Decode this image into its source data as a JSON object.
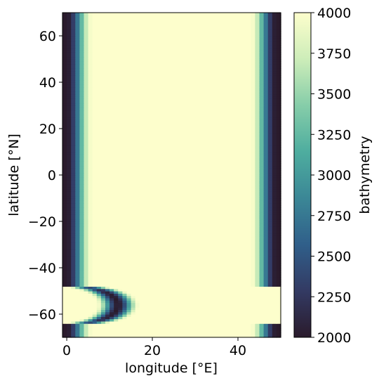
{
  "chart_data": {
    "type": "heatmap",
    "title": "",
    "xlabel": "longitude [°E]",
    "ylabel": "latitude [°N]",
    "xlim": [
      -1,
      50
    ],
    "ylim": [
      -70,
      70
    ],
    "xticks": [
      0,
      20,
      40
    ],
    "yticks": [
      -60,
      -40,
      -20,
      0,
      20,
      40,
      60
    ],
    "grid": false,
    "grid_resolution_deg": 1,
    "colormap": [
      "#2a1b2c",
      "#333a63",
      "#305f8a",
      "#3b8796",
      "#4ead9f",
      "#86cda9",
      "#cdedb9",
      "#fdfecc"
    ],
    "colorbar": {
      "label": "bathymetry",
      "min": 2000,
      "max": 4000,
      "ticks": [
        2000,
        2250,
        2500,
        2750,
        3000,
        3250,
        3500,
        3750,
        4000
      ],
      "placement": "right"
    },
    "field": {
      "max_depth": 4000,
      "min_depth": 2000,
      "description_of_features": {
        "west_coast_longitude": 0,
        "east_coast_longitude": 49,
        "drake_passage_lat_range": [
          -64,
          -48
        ]
      }
    }
  }
}
